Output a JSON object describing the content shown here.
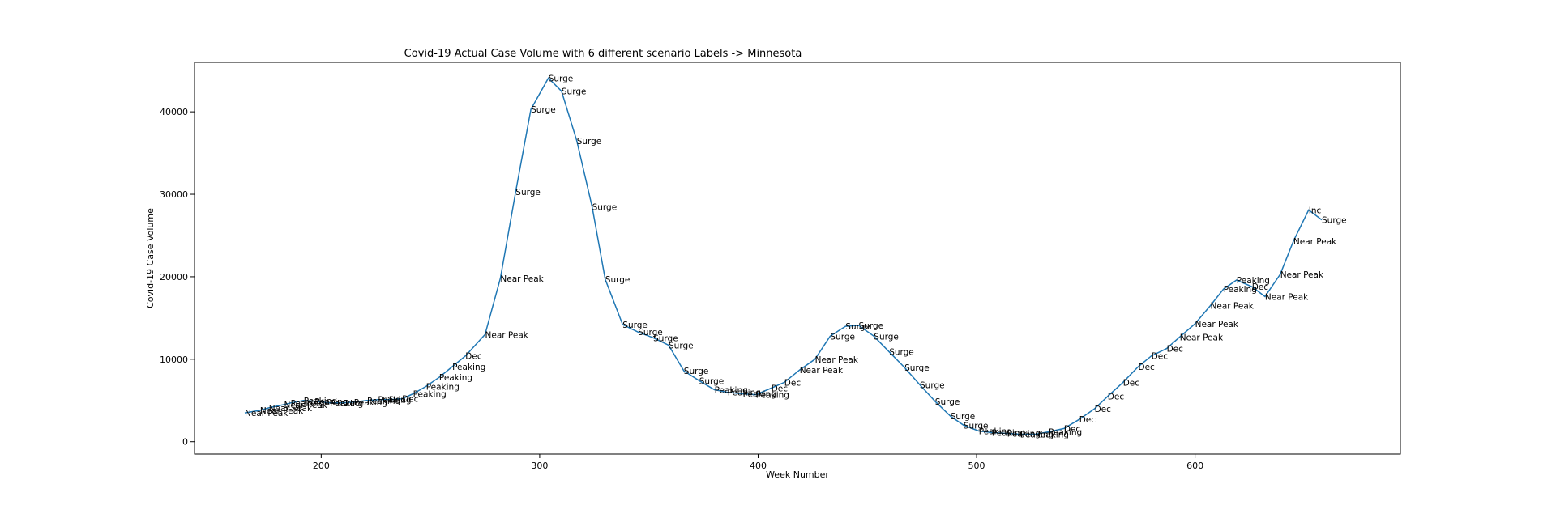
{
  "chart_data": {
    "type": "line",
    "title": "Covid-19 Actual Case Volume with 6 different scenario Labels  -> Minnesota",
    "xlabel": "Week Number",
    "ylabel": "Covid-19 Case Volume",
    "xlim": [
      142,
      694
    ],
    "ylim": [
      -1500,
      46000
    ],
    "xticks": [
      200,
      300,
      400,
      500,
      600
    ],
    "yticks": [
      0,
      10000,
      20000,
      30000,
      40000
    ],
    "grid": false,
    "color": "#1f77b4",
    "series": [
      {
        "points": [
          [
            165,
            3500,
            "Near Peak"
          ],
          [
            172,
            3800,
            "Near Peak"
          ],
          [
            176,
            4100,
            "Near Peak"
          ],
          [
            183,
            4500,
            "Near Peak"
          ],
          [
            186,
            4700,
            "Peaking"
          ],
          [
            192,
            5000,
            "Peaking"
          ],
          [
            197,
            4900,
            "Peaking"
          ],
          [
            204,
            4700,
            "Peaking"
          ],
          [
            210,
            4700,
            "Dec"
          ],
          [
            215,
            4800,
            "Peaking"
          ],
          [
            221,
            5000,
            "Peaking"
          ],
          [
            226,
            5100,
            "Peaking"
          ],
          [
            231,
            5100,
            "Dec"
          ],
          [
            237,
            5200,
            "Dec"
          ],
          [
            242,
            5800,
            "Peaking"
          ],
          [
            248,
            6700,
            "Peaking"
          ],
          [
            254,
            7800,
            "Peaking"
          ],
          [
            260,
            9100,
            "Peaking"
          ],
          [
            266,
            10400,
            "Dec"
          ],
          [
            275,
            13000,
            "Near Peak"
          ],
          [
            282,
            19800,
            "Near Peak"
          ],
          [
            289,
            30300,
            "Surge"
          ],
          [
            296,
            40300,
            "Surge"
          ],
          [
            304,
            44100,
            "Surge"
          ],
          [
            310,
            42500,
            "Surge"
          ],
          [
            317,
            36500,
            "Surge"
          ],
          [
            324,
            28500,
            "Surge"
          ],
          [
            330,
            19700,
            "Surge"
          ],
          [
            338,
            14200,
            "Surge"
          ],
          [
            345,
            13300,
            "Surge"
          ],
          [
            352,
            12600,
            "Surge"
          ],
          [
            359,
            11700,
            "Surge"
          ],
          [
            366,
            8600,
            "Surge"
          ],
          [
            373,
            7400,
            "Surge"
          ],
          [
            380,
            6300,
            "Peaking"
          ],
          [
            386,
            6000,
            "Peaking"
          ],
          [
            393,
            5800,
            "Peaking"
          ],
          [
            399,
            5700,
            "Peaking"
          ],
          [
            406,
            6500,
            "Dec"
          ],
          [
            412,
            7200,
            "Dec"
          ],
          [
            419,
            8700,
            "Near Peak"
          ],
          [
            426,
            10000,
            "Near Peak"
          ],
          [
            433,
            12800,
            "Surge"
          ],
          [
            440,
            14000,
            "Surge"
          ],
          [
            446,
            14100,
            "Surge"
          ],
          [
            453,
            12800,
            "Surge"
          ],
          [
            460,
            10900,
            "Surge"
          ],
          [
            467,
            9000,
            "Surge"
          ],
          [
            474,
            6900,
            "Surge"
          ],
          [
            481,
            4900,
            "Surge"
          ],
          [
            488,
            3100,
            "Surge"
          ],
          [
            494,
            2000,
            "Surge"
          ],
          [
            501,
            1300,
            "Peaking"
          ],
          [
            507,
            1100,
            "Peaking"
          ],
          [
            514,
            1000,
            "Peaking"
          ],
          [
            520,
            900,
            "Peaking"
          ],
          [
            527,
            900,
            "Peaking"
          ],
          [
            533,
            1200,
            "Peaking"
          ],
          [
            540,
            1600,
            "Dec"
          ],
          [
            547,
            2700,
            "Dec"
          ],
          [
            554,
            4000,
            "Dec"
          ],
          [
            560,
            5500,
            "Dec"
          ],
          [
            567,
            7200,
            "Dec"
          ],
          [
            574,
            9100,
            "Dec"
          ],
          [
            580,
            10400,
            "Dec"
          ],
          [
            587,
            11300,
            "Dec"
          ],
          [
            593,
            12700,
            "Near Peak"
          ],
          [
            600,
            14300,
            "Near Peak"
          ],
          [
            607,
            16500,
            "Near Peak"
          ],
          [
            613,
            18500,
            "Peaking"
          ],
          [
            619,
            19600,
            "Peaking"
          ],
          [
            626,
            18800,
            "Dec"
          ],
          [
            632,
            17600,
            "Near Peak"
          ],
          [
            639,
            20300,
            "Near Peak"
          ],
          [
            645,
            24300,
            "Near Peak"
          ],
          [
            652,
            28100,
            "Inc"
          ],
          [
            658,
            26900,
            "Surge"
          ]
        ]
      }
    ]
  }
}
